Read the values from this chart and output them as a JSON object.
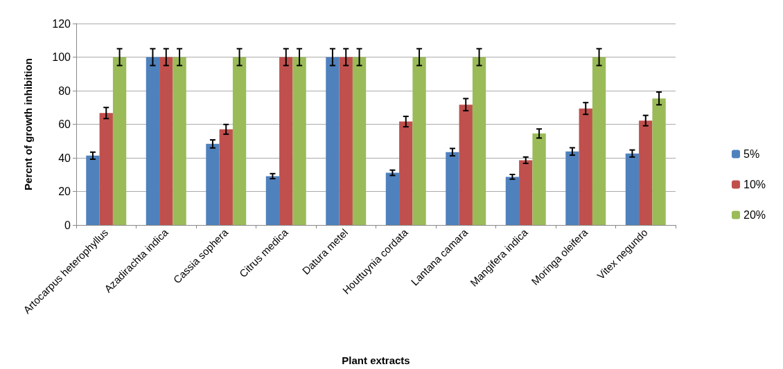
{
  "chart_data": {
    "type": "bar",
    "xlabel": "Plant extracts",
    "ylabel": "Percnt of growth inhibition",
    "categories": [
      "Artocarpus heterophyllus",
      "Azadirachta indica",
      "Cassia sophera",
      "Citrus medica",
      "Datura metel",
      "Houttuynia cordata",
      "Lantana camara",
      "Mangifera indica",
      "Moringa oleifera",
      "Vitex negundo"
    ],
    "series": [
      {
        "name": "5%",
        "color": "#4f81bd",
        "values": [
          41.3,
          100,
          48.3,
          29.1,
          100,
          31.1,
          43.4,
          28.7,
          43.8,
          42.6
        ],
        "errors": [
          2.1,
          5,
          2.4,
          1.5,
          5,
          1.6,
          2.2,
          1.4,
          2.2,
          2.1
        ]
      },
      {
        "name": "10%",
        "color": "#c0504d",
        "values": [
          66.7,
          100,
          57,
          100,
          100,
          61.6,
          71.7,
          38.6,
          69.4,
          62.2
        ],
        "errors": [
          3.3,
          5,
          2.9,
          5,
          5,
          3.1,
          3.6,
          1.9,
          3.5,
          3.1
        ]
      },
      {
        "name": "20%",
        "color": "#9bbb59",
        "values": [
          100,
          100,
          100,
          100,
          100,
          100,
          100,
          54.5,
          100,
          75.4
        ],
        "errors": [
          5,
          5,
          5,
          5,
          5,
          5,
          5,
          2.7,
          5,
          3.8
        ]
      }
    ],
    "ylim": [
      0,
      120
    ],
    "yticks": [
      0,
      20,
      40,
      60,
      80,
      100,
      120
    ],
    "grid": "y",
    "legend": "right"
  }
}
